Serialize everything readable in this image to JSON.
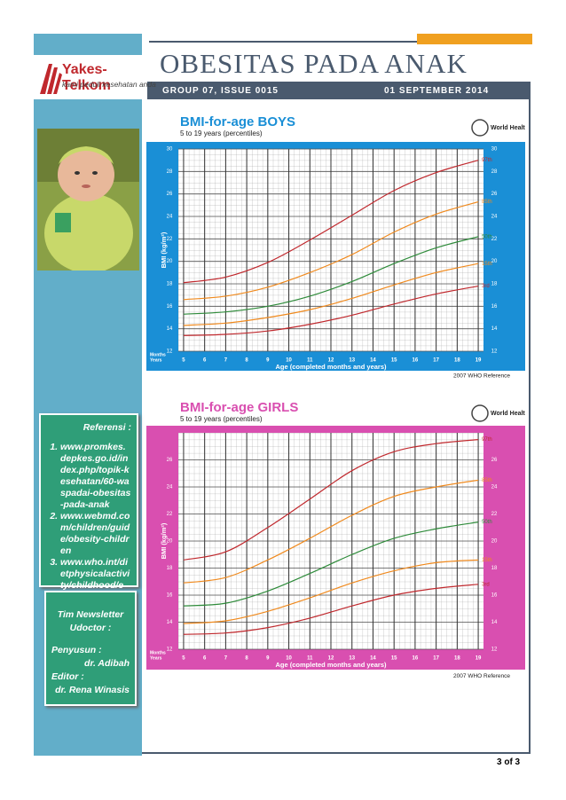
{
  "header": {
    "title": "OBESITAS PADA ANAK",
    "issue": "GROUP 07, ISSUE 0015",
    "date": "01 SEPTEMBER 2014"
  },
  "logo": {
    "name": "Yakes-Telkom",
    "tagline": "kami peduli kesehatan anda"
  },
  "references": {
    "heading": "Referensi :",
    "items": [
      "www.promkes.depkes.go.id/index.php/topik-kesehatan/60-waspadai-obesitas-pada-anak",
      "www.webmd.com/children/guide/obesity-children",
      "www.who.int/dietphysicalactivity/childhood/en/"
    ]
  },
  "team": {
    "heading": "Tim Newsletter Udoctor :",
    "compiler_label": "Penyusun :",
    "compiler": "dr. Adibah",
    "editor_label": "Editor :",
    "editor": "dr. Rena Winasis"
  },
  "charts": [
    {
      "type": "line",
      "title": "BMI-for-age  BOYS",
      "subtitle": "5 to 19 years (percentiles)",
      "org": "World Health Organization",
      "y_label": "BMI (kg/m²)",
      "x_label": "Age (completed months and years)",
      "months_label": "Months",
      "years_label": "Years",
      "footer": "2007  WHO Reference",
      "x": [
        5,
        7,
        9,
        11,
        13,
        15,
        17,
        19
      ],
      "xlim": [
        4.75,
        19.25
      ],
      "xticks": [
        5,
        6,
        7,
        8,
        9,
        10,
        11,
        12,
        13,
        14,
        15,
        16,
        17,
        18,
        19
      ],
      "ylim": [
        12,
        30
      ],
      "yticks": [
        12,
        14,
        16,
        18,
        20,
        22,
        24,
        26,
        28,
        30
      ],
      "series": [
        {
          "name": "97th",
          "color": "#c0282d",
          "values": [
            18.1,
            18.6,
            19.9,
            21.9,
            24.1,
            26.3,
            27.9,
            29.0
          ]
        },
        {
          "name": "85th",
          "color": "#f08a1e",
          "values": [
            16.6,
            16.9,
            17.7,
            19.0,
            20.6,
            22.6,
            24.2,
            25.3
          ]
        },
        {
          "name": "50th",
          "color": "#2e8b3a",
          "values": [
            15.3,
            15.5,
            16.0,
            16.9,
            18.2,
            19.8,
            21.2,
            22.2
          ]
        },
        {
          "name": "15th",
          "color": "#f08a1e",
          "values": [
            14.3,
            14.5,
            15.0,
            15.7,
            16.7,
            17.9,
            19.0,
            19.8
          ]
        },
        {
          "name": "3rd",
          "color": "#c0282d",
          "values": [
            13.4,
            13.5,
            13.8,
            14.4,
            15.2,
            16.2,
            17.1,
            17.8
          ]
        }
      ]
    },
    {
      "type": "line",
      "title": "BMI-for-age  GIRLS",
      "subtitle": "5 to 19 years (percentiles)",
      "org": "World Health Organization",
      "y_label": "BMI (kg/m²)",
      "x_label": "Age (completed months and years)",
      "months_label": "Months",
      "years_label": "Years",
      "footer": "2007  WHO Reference",
      "x": [
        5,
        7,
        9,
        11,
        13,
        15,
        17,
        19
      ],
      "xlim": [
        4.75,
        19.25
      ],
      "xticks": [
        5,
        6,
        7,
        8,
        9,
        10,
        11,
        12,
        13,
        14,
        15,
        16,
        17,
        18,
        19
      ],
      "ylim": [
        12,
        28
      ],
      "yticks": [
        12,
        14,
        16,
        18,
        20,
        22,
        24,
        26
      ],
      "series": [
        {
          "name": "97th",
          "color": "#c0282d",
          "values": [
            18.6,
            19.2,
            21.0,
            23.1,
            25.2,
            26.6,
            27.2,
            27.5
          ]
        },
        {
          "name": "85th",
          "color": "#f08a1e",
          "values": [
            16.9,
            17.3,
            18.6,
            20.2,
            21.9,
            23.3,
            24.0,
            24.5
          ]
        },
        {
          "name": "50th",
          "color": "#2e8b3a",
          "values": [
            15.2,
            15.4,
            16.3,
            17.6,
            19.0,
            20.2,
            20.9,
            21.4
          ]
        },
        {
          "name": "15th",
          "color": "#f08a1e",
          "values": [
            13.9,
            14.1,
            14.8,
            15.8,
            16.9,
            17.8,
            18.4,
            18.6
          ]
        },
        {
          "name": "3rd",
          "color": "#c0282d",
          "values": [
            13.1,
            13.2,
            13.6,
            14.3,
            15.2,
            16.0,
            16.5,
            16.8
          ]
        }
      ]
    }
  ],
  "page": "3 of 3"
}
